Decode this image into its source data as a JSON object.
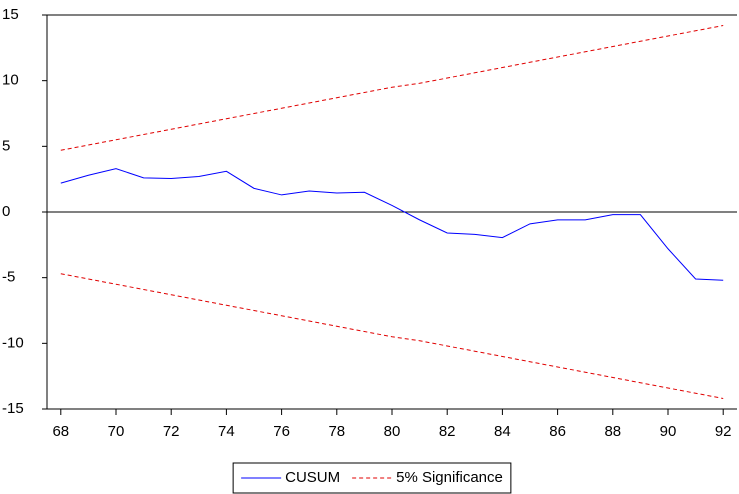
{
  "chart_data": {
    "type": "line",
    "x": [
      68,
      69,
      70,
      71,
      72,
      73,
      74,
      75,
      76,
      77,
      78,
      79,
      80,
      81,
      82,
      83,
      84,
      85,
      86,
      87,
      88,
      89,
      90,
      91,
      92
    ],
    "series": [
      {
        "name": "CUSUM",
        "color": "#0000ff",
        "dash": false,
        "values": [
          2.2,
          2.8,
          3.3,
          2.6,
          2.55,
          2.7,
          3.1,
          1.8,
          1.3,
          1.6,
          1.45,
          1.5,
          0.5,
          -0.6,
          -1.6,
          -1.7,
          -1.95,
          -0.9,
          -0.6,
          -0.6,
          -0.2,
          -0.2,
          -2.8,
          -5.1,
          -5.2
        ]
      },
      {
        "name": "5% Significance",
        "color": "#e00000",
        "dash": true,
        "values": [
          4.7,
          5.1,
          5.5,
          5.9,
          6.3,
          6.7,
          7.1,
          7.5,
          7.9,
          8.3,
          8.7,
          9.1,
          9.5,
          9.8,
          10.2,
          10.6,
          11.0,
          11.4,
          11.8,
          12.2,
          12.6,
          13.0,
          13.4,
          13.8,
          14.2
        ]
      },
      {
        "color": "#e00000",
        "dash": true,
        "values": [
          -4.7,
          -5.1,
          -5.5,
          -5.9,
          -6.3,
          -6.7,
          -7.1,
          -7.5,
          -7.9,
          -8.3,
          -8.7,
          -9.1,
          -9.5,
          -9.8,
          -10.2,
          -10.6,
          -11.0,
          -11.4,
          -11.8,
          -12.2,
          -12.6,
          -13.0,
          -13.4,
          -13.8,
          -14.2
        ]
      }
    ],
    "xlim": [
      67.5,
      92.5
    ],
    "xticks": [
      68,
      70,
      72,
      74,
      76,
      78,
      80,
      82,
      84,
      86,
      88,
      90,
      92
    ],
    "ylim": [
      -15,
      15
    ],
    "yticks": [
      -15,
      -10,
      -5,
      0,
      5,
      10,
      15
    ],
    "legend": "bottom"
  }
}
